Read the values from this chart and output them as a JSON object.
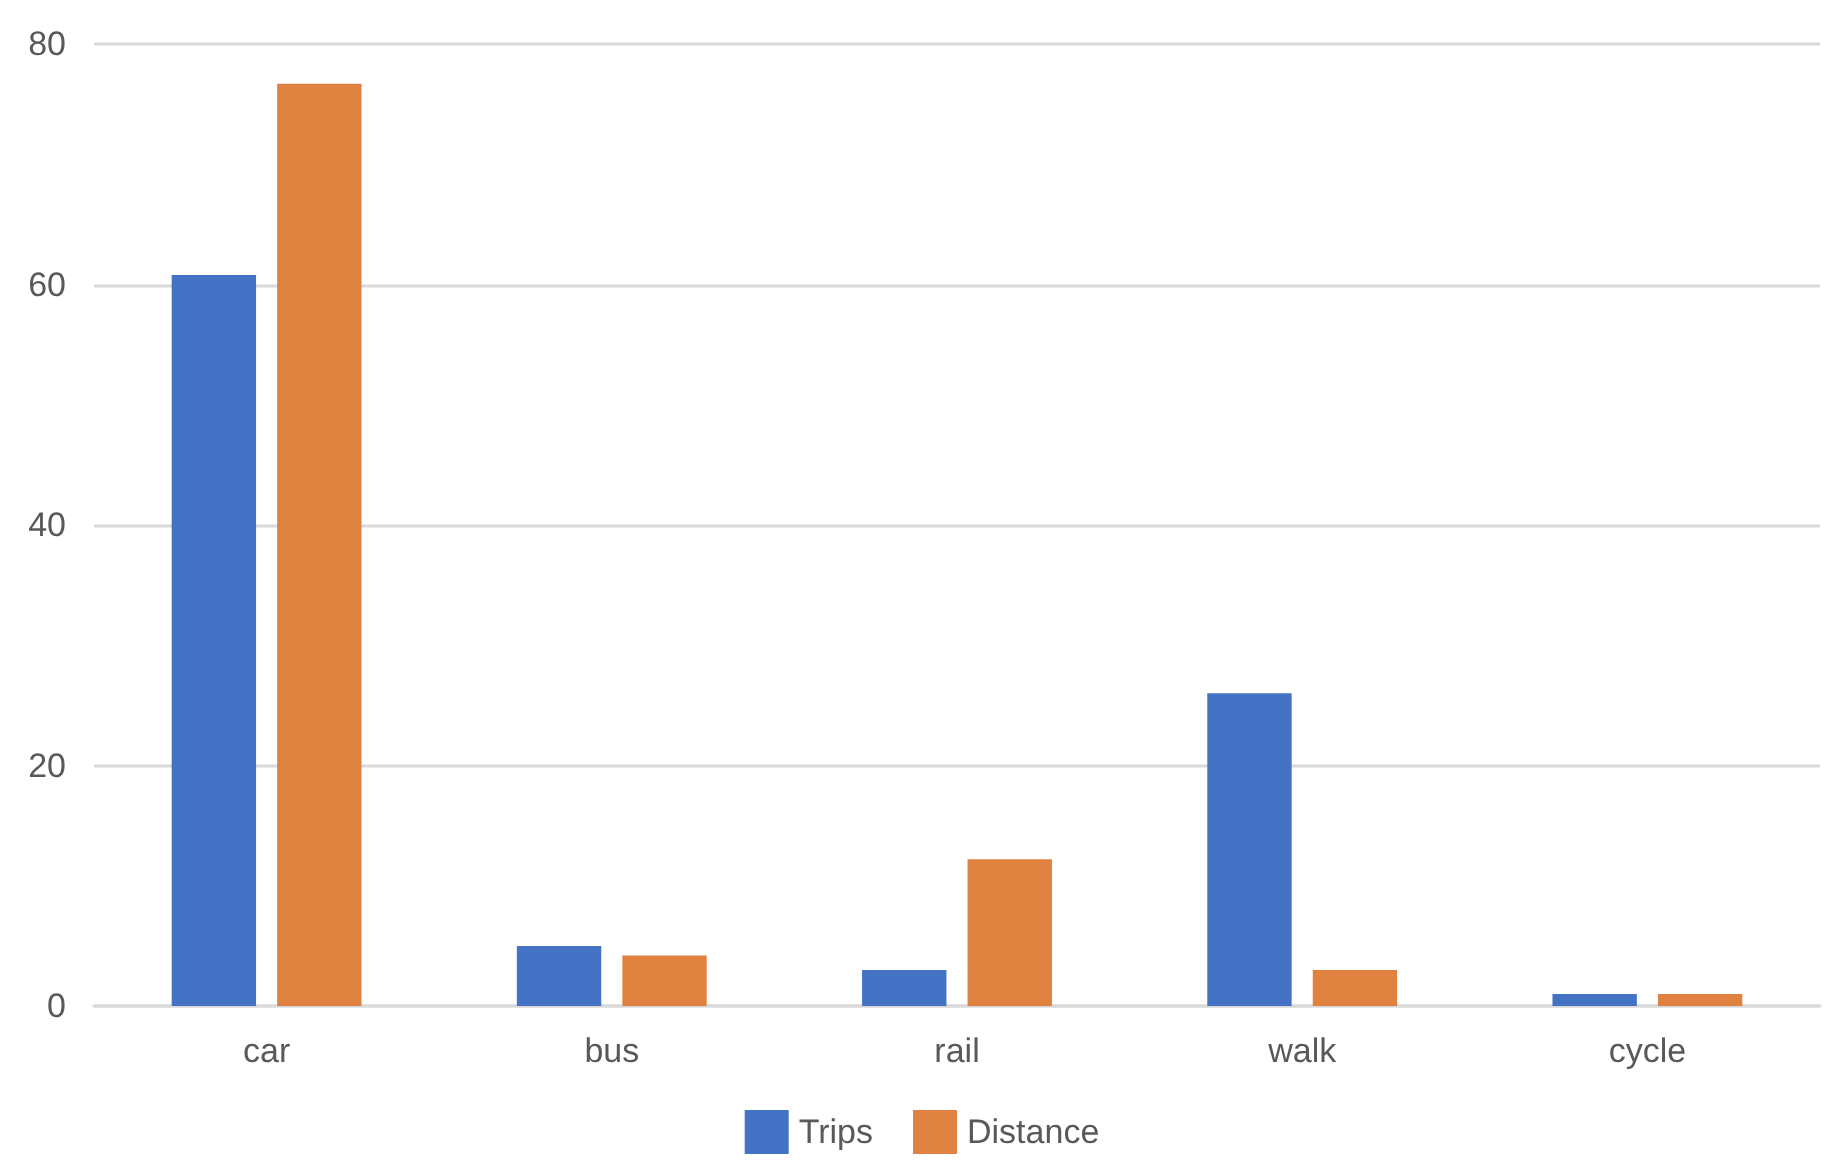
{
  "chart_data": {
    "type": "bar",
    "categories": [
      "car",
      "bus",
      "rail",
      "walk",
      "cycle"
    ],
    "series": [
      {
        "name": "Trips",
        "color": "#4472c4",
        "values": [
          60.8,
          5.0,
          3.0,
          26.0,
          1.0
        ]
      },
      {
        "name": "Distance",
        "color": "#e0823f",
        "values": [
          76.7,
          4.2,
          12.2,
          3.0,
          1.0
        ]
      }
    ],
    "ylim": [
      0,
      80
    ],
    "yticks": [
      0,
      20,
      40,
      60,
      80
    ],
    "grid": "y",
    "legend": "bottom"
  }
}
